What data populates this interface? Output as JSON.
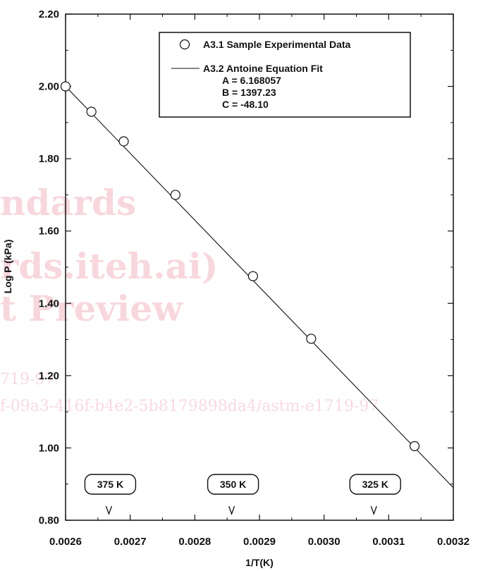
{
  "watermark": {
    "line1": "ndards",
    "line2": "rds.iteh.ai)",
    "line3": "t Preview",
    "line4": "719-97",
    "line5": "f-09a3-416f-b4e2-5b8179898da4/astm-e1719-97"
  },
  "chart_data": {
    "type": "scatter",
    "xlabel": "1/T(K)",
    "ylabel": "Log P (kPa)",
    "xlim": [
      0.0026,
      0.0032
    ],
    "ylim": [
      0.8,
      2.2
    ],
    "xticks": [
      "0.0026",
      "0.0027",
      "0.0028",
      "0.0029",
      "0.0030",
      "0.0031",
      "0.0032"
    ],
    "xtick_values": [
      0.0026,
      0.0027,
      0.0028,
      0.0029,
      0.003,
      0.0031,
      0.0032
    ],
    "yticks": [
      "0.80",
      "1.00",
      "1.20",
      "1.40",
      "1.60",
      "1.80",
      "2.00",
      "2.20"
    ],
    "ytick_values": [
      0.8,
      1.0,
      1.2,
      1.4,
      1.6,
      1.8,
      2.0,
      2.2
    ],
    "grid": false,
    "legend_position": "top-right",
    "series": [
      {
        "name": "A3.1 Sample Experimental Data",
        "kind": "scatter",
        "marker": "open-circle",
        "x": [
          0.0026,
          0.00264,
          0.00269,
          0.00277,
          0.00289,
          0.00298,
          0.00314
        ],
        "y": [
          2.0,
          1.93,
          1.848,
          1.7,
          1.475,
          1.302,
          1.005
        ]
      },
      {
        "name": "A3.2 Antoine Equation Fit",
        "kind": "line",
        "x": [
          0.0026,
          0.0032
        ],
        "y": [
          2.0,
          0.89
        ]
      }
    ],
    "legend": {
      "entries": [
        "A3.1 Sample Experimental Data",
        "A3.2 Antoine Equation Fit"
      ],
      "params": [
        "A = 6.168057",
        "B = 1397.23",
        "C = -48.10"
      ]
    },
    "annotations": [
      {
        "label": "375 K",
        "x": 0.002667
      },
      {
        "label": "350 K",
        "x": 0.002857
      },
      {
        "label": "325 K",
        "x": 0.003077
      }
    ]
  }
}
